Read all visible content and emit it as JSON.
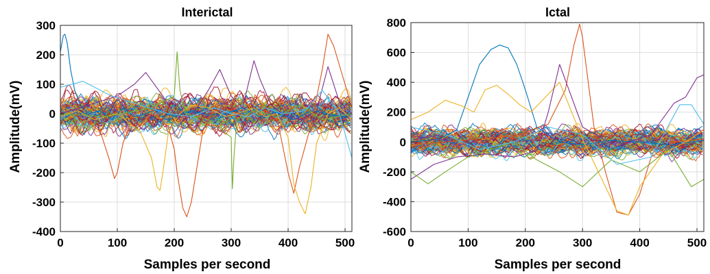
{
  "figure": {
    "colors": [
      "#0072BD",
      "#D95319",
      "#EDB120",
      "#7E2F8E",
      "#77AC30",
      "#4DBEEE",
      "#A2142F"
    ]
  },
  "chart_data": [
    {
      "type": "line",
      "title": "Interictal",
      "xlabel": "Samples per second",
      "ylabel": "Amplitude(mV)",
      "xlim": [
        0,
        512
      ],
      "ylim": [
        -400,
        300
      ],
      "xticks": [
        0,
        100,
        200,
        300,
        400,
        500
      ],
      "yticks": [
        -400,
        -300,
        -200,
        -100,
        0,
        100,
        200,
        300
      ],
      "grid": true,
      "background_channel_count": 100,
      "background_amplitude_range": [
        -100,
        100
      ],
      "series": [
        {
          "x": [
            0,
            5,
            8,
            12,
            18,
            25,
            35,
            50,
            70,
            90,
            110,
            130,
            150,
            170,
            200,
            230,
            260,
            290,
            320,
            350,
            380,
            410,
            440,
            470,
            500,
            512
          ],
          "y": [
            210,
            265,
            270,
            240,
            150,
            80,
            30,
            0,
            10,
            -20,
            20,
            -10,
            0,
            15,
            -10,
            10,
            -5,
            0,
            20,
            -10,
            5,
            -20,
            10,
            0,
            -10,
            0
          ]
        },
        {
          "x": [
            0,
            20,
            50,
            70,
            85,
            95,
            100,
            110,
            130,
            160,
            190,
            200,
            205,
            215,
            222,
            230,
            240,
            250,
            265,
            280,
            300,
            330,
            350,
            380,
            400,
            410,
            420,
            440,
            460,
            470,
            480,
            500,
            512
          ],
          "y": [
            20,
            0,
            -30,
            -60,
            -150,
            -220,
            -200,
            -100,
            0,
            20,
            -50,
            -120,
            -200,
            -320,
            -350,
            -300,
            -180,
            -60,
            0,
            30,
            10,
            50,
            20,
            -10,
            -200,
            -270,
            -180,
            -40,
            150,
            270,
            230,
            100,
            20
          ]
        },
        {
          "x": [
            0,
            30,
            60,
            100,
            140,
            160,
            170,
            175,
            180,
            190,
            210,
            230,
            260,
            290,
            310,
            340,
            360,
            380,
            400,
            410,
            420,
            430,
            440,
            450,
            470,
            490,
            512
          ],
          "y": [
            -10,
            10,
            -20,
            0,
            -60,
            -150,
            -250,
            -260,
            -200,
            -60,
            0,
            30,
            20,
            -10,
            0,
            20,
            -10,
            0,
            -80,
            -240,
            -300,
            -340,
            -250,
            -100,
            0,
            20,
            -20
          ]
        },
        {
          "x": [
            0,
            50,
            100,
            130,
            150,
            180,
            200,
            220,
            240,
            260,
            280,
            300,
            320,
            340,
            350,
            370,
            390,
            420,
            450,
            470,
            490,
            512
          ],
          "y": [
            0,
            30,
            60,
            100,
            140,
            60,
            0,
            -20,
            20,
            80,
            150,
            60,
            20,
            180,
            120,
            30,
            0,
            -20,
            10,
            160,
            40,
            0
          ]
        },
        {
          "x": [
            0,
            80,
            160,
            200,
            205,
            210,
            220,
            260,
            300,
            302,
            305,
            310,
            340,
            380,
            420,
            460,
            512
          ],
          "y": [
            0,
            -10,
            20,
            60,
            210,
            80,
            0,
            -20,
            -80,
            -255,
            -140,
            -20,
            10,
            -10,
            30,
            -20,
            0
          ]
        },
        {
          "x": [
            0,
            40,
            90,
            140,
            190,
            230,
            270,
            300,
            330,
            360,
            390,
            430,
            460,
            490,
            512
          ],
          "y": [
            90,
            110,
            60,
            30,
            0,
            -10,
            20,
            0,
            -10,
            20,
            0,
            10,
            80,
            0,
            -150
          ]
        }
      ]
    },
    {
      "type": "line",
      "title": "Ictal",
      "xlabel": "Samples per second",
      "ylabel": "Amplitude(mV)",
      "xlim": [
        0,
        512
      ],
      "ylim": [
        -600,
        800
      ],
      "xticks": [
        0,
        100,
        200,
        300,
        400,
        500
      ],
      "yticks": [
        -600,
        -400,
        -200,
        0,
        200,
        400,
        600,
        800
      ],
      "grid": true,
      "background_channel_count": 100,
      "background_amplitude_range": [
        -150,
        150
      ],
      "series": [
        {
          "x": [
            0,
            50,
            80,
            100,
            120,
            140,
            155,
            170,
            185,
            200,
            220,
            260,
            300,
            350,
            400,
            450,
            512
          ],
          "y": [
            0,
            20,
            80,
            300,
            520,
            620,
            650,
            630,
            520,
            350,
            100,
            0,
            -20,
            10,
            0,
            -20,
            10
          ]
        },
        {
          "x": [
            0,
            60,
            120,
            180,
            240,
            270,
            285,
            295,
            300,
            310,
            320,
            340,
            360,
            380,
            400,
            420,
            460,
            512
          ],
          "y": [
            -20,
            0,
            20,
            40,
            120,
            350,
            650,
            790,
            700,
            400,
            100,
            -200,
            -470,
            -490,
            -350,
            -100,
            0,
            20
          ]
        },
        {
          "x": [
            0,
            30,
            60,
            90,
            110,
            130,
            150,
            170,
            190,
            210,
            260,
            300,
            340,
            360,
            380,
            400,
            440,
            480,
            512
          ],
          "y": [
            150,
            200,
            280,
            240,
            200,
            350,
            380,
            320,
            250,
            200,
            400,
            20,
            -300,
            -460,
            -490,
            -300,
            -80,
            0,
            80
          ]
        },
        {
          "x": [
            0,
            40,
            80,
            130,
            180,
            220,
            240,
            260,
            300,
            360,
            420,
            460,
            480,
            500,
            512
          ],
          "y": [
            -250,
            -150,
            -100,
            -80,
            -100,
            -60,
            200,
            520,
            100,
            -30,
            50,
            260,
            300,
            430,
            450
          ]
        },
        {
          "x": [
            0,
            30,
            60,
            100,
            140,
            180,
            220,
            260,
            300,
            350,
            400,
            450,
            490,
            512
          ],
          "y": [
            -200,
            -280,
            -200,
            -100,
            -50,
            0,
            -120,
            -200,
            -300,
            -120,
            -200,
            -50,
            -300,
            -250
          ]
        },
        {
          "x": [
            0,
            60,
            120,
            180,
            240,
            300,
            360,
            420,
            470,
            490,
            512
          ],
          "y": [
            100,
            50,
            -50,
            0,
            100,
            50,
            -150,
            -100,
            250,
            250,
            120
          ]
        }
      ]
    }
  ]
}
